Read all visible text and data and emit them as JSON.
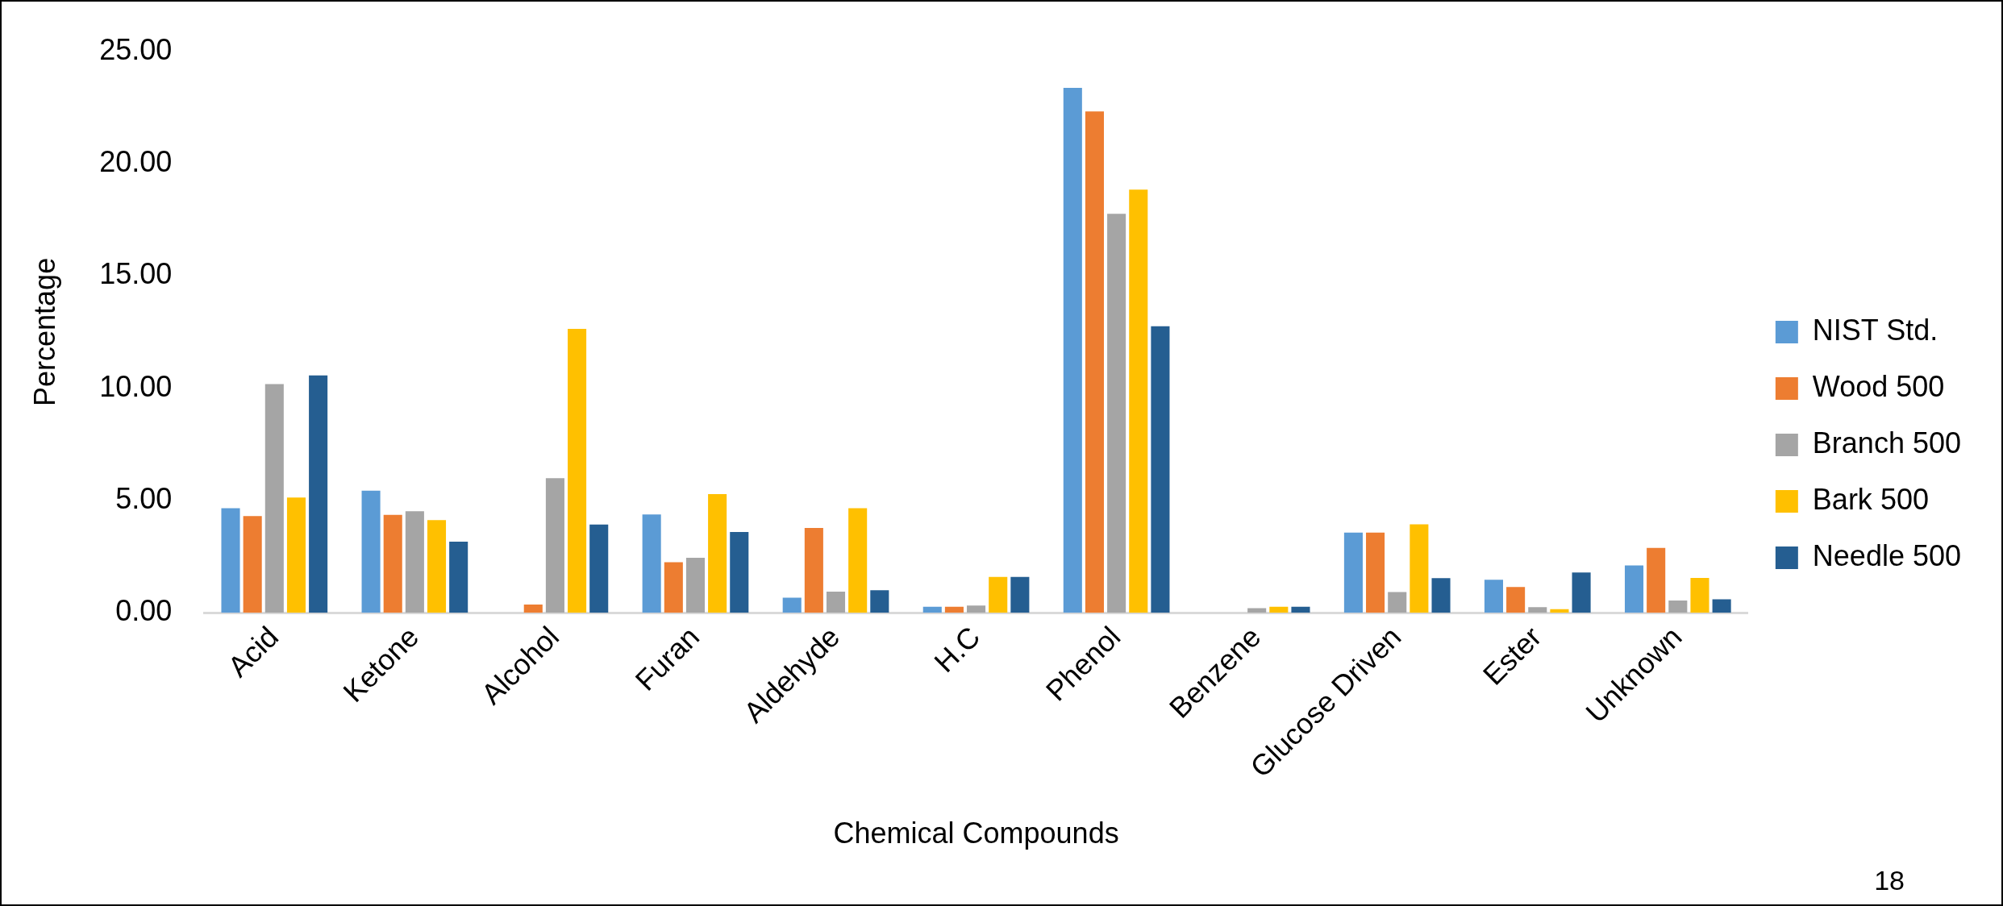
{
  "chart_data": {
    "type": "bar",
    "xlabel": "Chemical Compounds",
    "ylabel": "Percentage",
    "categories": [
      "Acid",
      "Ketone",
      "Alcohol",
      "Furan",
      "Aldehyde",
      "H.C",
      "Phenol",
      "Benzene",
      "Glucose Driven",
      "Ester",
      "Unknown"
    ],
    "series": [
      {
        "name": "NIST Std.",
        "color": "#5b9bd5",
        "values": [
          4.66,
          5.44,
          0,
          4.38,
          0.67,
          0.27,
          23.37,
          0,
          3.57,
          1.47,
          2.11
        ]
      },
      {
        "name": "Wood 500",
        "color": "#ed7d31",
        "values": [
          4.31,
          4.36,
          0.37,
          2.25,
          3.78,
          0.27,
          22.32,
          0,
          3.57,
          1.15,
          2.89
        ]
      },
      {
        "name": "Branch 500",
        "color": "#a5a5a5",
        "values": [
          10.18,
          4.52,
          5.99,
          2.45,
          0.94,
          0.32,
          17.76,
          0.21,
          0.92,
          0.25,
          0.55
        ]
      },
      {
        "name": "Bark 500",
        "color": "#ffc000",
        "values": [
          5.13,
          4.13,
          12.64,
          5.28,
          4.66,
          1.6,
          18.84,
          0.27,
          3.94,
          0.16,
          1.55
        ]
      },
      {
        "name": "Needle 500",
        "color": "#255e91",
        "values": [
          10.57,
          3.17,
          3.93,
          3.6,
          1.0,
          1.6,
          12.76,
          0.27,
          1.54,
          1.79,
          0.6
        ]
      }
    ],
    "ylim": [
      0,
      25
    ],
    "yticks": [
      {
        "value": 0,
        "label": "0.00"
      },
      {
        "value": 5,
        "label": "5.00"
      },
      {
        "value": 10,
        "label": "10.00"
      },
      {
        "value": 15,
        "label": "15.00"
      },
      {
        "value": 20,
        "label": "20.00"
      },
      {
        "value": 25,
        "label": "25.00"
      }
    ],
    "grid": false,
    "legend": "right",
    "annotations": [
      "18"
    ]
  }
}
